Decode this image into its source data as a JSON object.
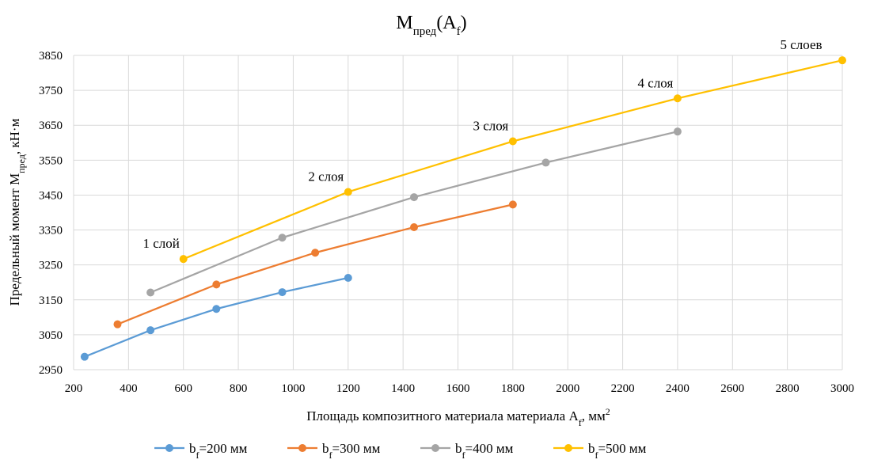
{
  "chart_data": {
    "type": "line",
    "title": {
      "main": "M",
      "main_sub": "пред",
      "paren_open": "(A",
      "paren_sub": "f",
      "paren_close": ")"
    },
    "xlabel": {
      "text": "Площадь композитного материала материала A",
      "sub": "f",
      "unit": ", мм",
      "sup": "2"
    },
    "ylabel": {
      "text": "Предельный момент M",
      "sub": "пред",
      "unit": ", кН·м"
    },
    "xlim": [
      200,
      3000
    ],
    "ylim": [
      2950,
      3850
    ],
    "xticks": [
      "200",
      "400",
      "600",
      "800",
      "1000",
      "1200",
      "1400",
      "1600",
      "1800",
      "2000",
      "2200",
      "2400",
      "2600",
      "2800",
      "3000"
    ],
    "yticks": [
      "2950",
      "3050",
      "3150",
      "3250",
      "3350",
      "3450",
      "3550",
      "3650",
      "3750",
      "3850"
    ],
    "grid": true,
    "legend_position": "bottom",
    "series": [
      {
        "name": "b",
        "name_sub": "f",
        "name_rest": "=200 мм",
        "color": "#5b9bd5",
        "x": [
          240,
          480,
          720,
          960,
          1200
        ],
        "y": [
          2987,
          3063,
          3124,
          3172,
          3213
        ]
      },
      {
        "name": "b",
        "name_sub": "f",
        "name_rest": "=300 мм",
        "color": "#ed7d31",
        "x": [
          360,
          720,
          1080,
          1440,
          1800
        ],
        "y": [
          3080,
          3194,
          3285,
          3358,
          3423
        ]
      },
      {
        "name": "b",
        "name_sub": "f",
        "name_rest": "=400 мм",
        "color": "#a5a5a5",
        "x": [
          480,
          960,
          1440,
          1920,
          2400
        ],
        "y": [
          3171,
          3328,
          3444,
          3543,
          3632
        ]
      },
      {
        "name": "b",
        "name_sub": "f",
        "name_rest": "=500 мм",
        "color": "#ffc000",
        "x": [
          600,
          1200,
          1800,
          2400,
          3000
        ],
        "y": [
          3267,
          3459,
          3604,
          3727,
          3836
        ]
      }
    ],
    "annotations": [
      {
        "text": "1 слой",
        "x": 600,
        "y": 3267
      },
      {
        "text": "2 слоя",
        "x": 1200,
        "y": 3459
      },
      {
        "text": "3 слоя",
        "x": 1800,
        "y": 3604
      },
      {
        "text": "4 слоя",
        "x": 2400,
        "y": 3727
      },
      {
        "text": "5 слоев",
        "x": 3000,
        "y": 3836
      }
    ]
  }
}
